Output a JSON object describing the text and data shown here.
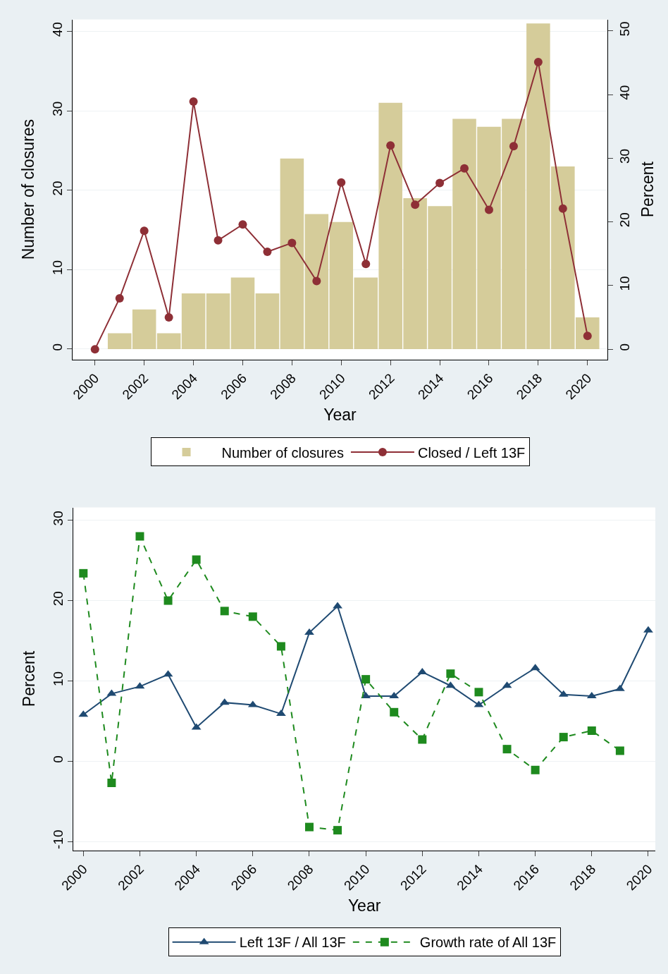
{
  "chart_data": [
    {
      "type": "bar",
      "xlabel": "Year",
      "ylabel": "Number of closures",
      "y2label": "Percent",
      "x": [
        2000,
        2001,
        2002,
        2003,
        2004,
        2005,
        2006,
        2007,
        2008,
        2009,
        2010,
        2011,
        2012,
        2013,
        2014,
        2015,
        2016,
        2017,
        2018,
        2019,
        2020
      ],
      "series": [
        {
          "name": "Number of closures",
          "type": "bar",
          "color": "#d5cc9a",
          "values": [
            0,
            2,
            5,
            2,
            7,
            7,
            9,
            7,
            24,
            17,
            16,
            9,
            31,
            19,
            18,
            29,
            28,
            29,
            41,
            23,
            4
          ]
        },
        {
          "name": "Closed / Left 13F",
          "type": "line",
          "axis": "y2",
          "color": "#8e2f36",
          "marker": "circle",
          "line_style": "solid",
          "values": [
            0,
            8.0,
            18.6,
            5.0,
            38.9,
            17.1,
            19.6,
            15.3,
            16.7,
            10.7,
            26.2,
            13.4,
            32.0,
            22.7,
            26.1,
            28.4,
            21.9,
            31.9,
            45.1,
            22.1,
            2.1
          ]
        }
      ],
      "xlim": [
        1999.1,
        2020.8
      ],
      "xticks": [
        2000,
        2002,
        2004,
        2006,
        2008,
        2010,
        2012,
        2014,
        2016,
        2018,
        2020
      ],
      "ylim": [
        -1.3,
        41.5
      ],
      "yticks": [
        0,
        10,
        20,
        30,
        40
      ],
      "y2lim": [
        -1.6,
        51.8
      ],
      "y2ticks": [
        0,
        10,
        20,
        30,
        40,
        50
      ],
      "grid": "y",
      "legend": "bottom"
    },
    {
      "type": "line",
      "xlabel": "Year",
      "ylabel": "Percent",
      "x": [
        2000,
        2001,
        2002,
        2003,
        2004,
        2005,
        2006,
        2007,
        2008,
        2009,
        2010,
        2011,
        2012,
        2013,
        2014,
        2015,
        2016,
        2017,
        2018,
        2019,
        2020
      ],
      "series": [
        {
          "name": "Left 13F / All 13F",
          "color": "#1f4a72",
          "marker": "triangle",
          "line_style": "solid",
          "values": [
            5.8,
            8.4,
            9.3,
            10.8,
            4.2,
            7.3,
            7.0,
            5.9,
            16.0,
            19.3,
            8.1,
            8.1,
            11.1,
            9.4,
            7.0,
            9.4,
            11.6,
            8.3,
            8.1,
            9.0,
            16.3
          ]
        },
        {
          "name": "Growth rate of All 13F",
          "color": "#1e8a1e",
          "marker": "square",
          "line_style": "dashed",
          "values": [
            23.4,
            -2.7,
            28.0,
            20.0,
            25.1,
            18.7,
            18.0,
            14.3,
            -8.2,
            -8.6,
            10.2,
            6.1,
            2.7,
            10.9,
            8.6,
            1.5,
            -1.1,
            3.0,
            3.8,
            1.3,
            null
          ]
        }
      ],
      "xlim": [
        1999.65,
        2020.25
      ],
      "xticks": [
        2000,
        2002,
        2004,
        2006,
        2008,
        2010,
        2012,
        2014,
        2016,
        2018,
        2020
      ],
      "ylim": [
        -11.1,
        31.6
      ],
      "yticks": [
        -10,
        0,
        10,
        20,
        30
      ],
      "grid": "y",
      "legend": "bottom"
    }
  ]
}
